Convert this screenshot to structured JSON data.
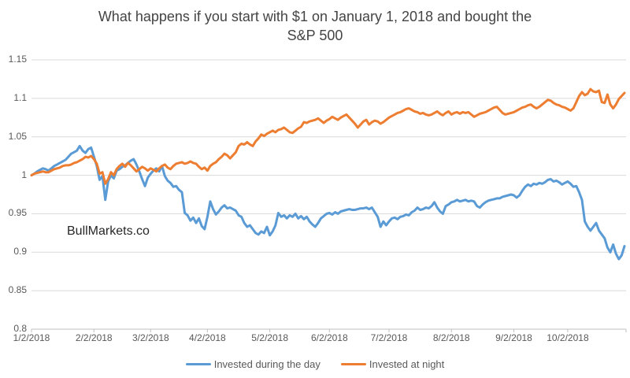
{
  "chart": {
    "title": "What happens if you start with $1 on January 1, 2018 and bought the S&P 500",
    "title_lines": [
      "What happens if you start with $1 on January 1, 2018 and bought the",
      "S&P 500"
    ],
    "watermark": "BullMarkets.co"
  },
  "chart_data": {
    "type": "line",
    "title": "What happens if you start with $1 on January 1, 2018 and bought the S&P 500",
    "xlabel": "",
    "ylabel": "",
    "ylim": [
      0.8,
      1.15
    ],
    "yticks": [
      0.8,
      0.85,
      0.9,
      0.95,
      1.0,
      1.05,
      1.1,
      1.15
    ],
    "ytick_labels": [
      "0.8",
      "0.85",
      "0.9",
      "0.95",
      "1",
      "1.05",
      "1.1",
      "1.15"
    ],
    "xtick_labels": [
      "1/2/2018",
      "2/2/2018",
      "3/2/2018",
      "4/2/2018",
      "5/2/2018",
      "6/2/2018",
      "7/2/2018",
      "8/2/2018",
      "9/2/2018",
      "10/2/2018"
    ],
    "xtick_positions": [
      0,
      22,
      42,
      62,
      84,
      105,
      126,
      148,
      170,
      189
    ],
    "x_count": 210,
    "x_range_note": "daily points, trading days 1/2/2018 through 10/31/2018",
    "grid": "horizontal",
    "legend_position": "bottom",
    "colors": {
      "grid": "#d9d9d9",
      "axis": "#bfbfbf",
      "tick": "#bfbfbf",
      "axis_text": "#595959",
      "title_text": "#444444",
      "watermark_text": "#262626",
      "series_day": "#5B9BD5",
      "series_night": "#ED7D31"
    },
    "series": [
      {
        "name": "Invested during the day",
        "color": "#5B9BD5",
        "values": [
          1.0,
          1.002,
          1.005,
          1.007,
          1.009,
          1.008,
          1.006,
          1.009,
          1.012,
          1.014,
          1.016,
          1.018,
          1.02,
          1.024,
          1.028,
          1.03,
          1.032,
          1.038,
          1.032,
          1.029,
          1.034,
          1.036,
          1.024,
          1.012,
          0.994,
          0.999,
          0.968,
          0.992,
          1.0,
          0.996,
          1.006,
          1.008,
          1.011,
          1.013,
          1.016,
          1.019,
          1.021,
          1.014,
          1.005,
          0.995,
          0.986,
          0.997,
          1.002,
          1.006,
          1.009,
          1.005,
          1.012,
          0.999,
          0.993,
          0.99,
          0.985,
          0.986,
          0.981,
          0.978,
          0.951,
          0.948,
          0.941,
          0.945,
          0.938,
          0.944,
          0.934,
          0.93,
          0.946,
          0.966,
          0.956,
          0.949,
          0.953,
          0.958,
          0.961,
          0.957,
          0.958,
          0.956,
          0.954,
          0.948,
          0.946,
          0.938,
          0.933,
          0.935,
          0.93,
          0.925,
          0.923,
          0.927,
          0.925,
          0.933,
          0.922,
          0.927,
          0.935,
          0.951,
          0.946,
          0.948,
          0.944,
          0.948,
          0.946,
          0.95,
          0.944,
          0.947,
          0.943,
          0.946,
          0.94,
          0.936,
          0.933,
          0.938,
          0.944,
          0.947,
          0.95,
          0.951,
          0.949,
          0.952,
          0.95,
          0.953,
          0.954,
          0.955,
          0.956,
          0.955,
          0.955,
          0.956,
          0.957,
          0.957,
          0.958,
          0.956,
          0.958,
          0.952,
          0.946,
          0.933,
          0.94,
          0.935,
          0.94,
          0.944,
          0.945,
          0.943,
          0.946,
          0.947,
          0.949,
          0.948,
          0.952,
          0.954,
          0.958,
          0.955,
          0.956,
          0.958,
          0.957,
          0.96,
          0.965,
          0.958,
          0.953,
          0.95,
          0.96,
          0.962,
          0.965,
          0.966,
          0.968,
          0.966,
          0.967,
          0.968,
          0.966,
          0.967,
          0.966,
          0.96,
          0.958,
          0.962,
          0.965,
          0.967,
          0.968,
          0.969,
          0.97,
          0.97,
          0.972,
          0.973,
          0.974,
          0.975,
          0.974,
          0.971,
          0.974,
          0.98,
          0.985,
          0.988,
          0.986,
          0.989,
          0.988,
          0.99,
          0.989,
          0.991,
          0.994,
          0.995,
          0.992,
          0.993,
          0.991,
          0.988,
          0.99,
          0.992,
          0.989,
          0.985,
          0.986,
          0.978,
          0.968,
          0.94,
          0.933,
          0.928,
          0.933,
          0.938,
          0.928,
          0.923,
          0.918,
          0.906,
          0.9,
          0.91,
          0.898,
          0.891,
          0.896,
          0.908
        ]
      },
      {
        "name": "Invested at night",
        "color": "#ED7D31",
        "values": [
          1.0,
          1.002,
          1.003,
          1.004,
          1.005,
          1.004,
          1.004,
          1.006,
          1.008,
          1.009,
          1.01,
          1.012,
          1.013,
          1.013,
          1.014,
          1.016,
          1.017,
          1.019,
          1.021,
          1.024,
          1.023,
          1.025,
          1.021,
          1.015,
          1.002,
          1.004,
          0.989,
          0.995,
          1.004,
          1.0,
          1.008,
          1.012,
          1.015,
          1.011,
          1.016,
          1.013,
          1.009,
          1.005,
          1.008,
          1.011,
          1.009,
          1.006,
          1.009,
          1.007,
          1.005,
          1.009,
          1.012,
          1.014,
          1.01,
          1.008,
          1.012,
          1.015,
          1.016,
          1.017,
          1.015,
          1.016,
          1.018,
          1.016,
          1.015,
          1.011,
          1.008,
          1.01,
          1.006,
          1.012,
          1.015,
          1.017,
          1.021,
          1.024,
          1.028,
          1.026,
          1.022,
          1.026,
          1.03,
          1.038,
          1.041,
          1.04,
          1.043,
          1.04,
          1.038,
          1.044,
          1.048,
          1.053,
          1.051,
          1.054,
          1.056,
          1.058,
          1.056,
          1.059,
          1.06,
          1.062,
          1.059,
          1.056,
          1.055,
          1.058,
          1.061,
          1.063,
          1.069,
          1.068,
          1.07,
          1.071,
          1.072,
          1.074,
          1.071,
          1.068,
          1.071,
          1.073,
          1.076,
          1.074,
          1.072,
          1.075,
          1.077,
          1.079,
          1.075,
          1.071,
          1.067,
          1.062,
          1.066,
          1.07,
          1.072,
          1.066,
          1.069,
          1.071,
          1.07,
          1.067,
          1.069,
          1.072,
          1.075,
          1.077,
          1.079,
          1.081,
          1.082,
          1.084,
          1.086,
          1.087,
          1.085,
          1.083,
          1.082,
          1.08,
          1.081,
          1.079,
          1.078,
          1.079,
          1.081,
          1.083,
          1.08,
          1.078,
          1.081,
          1.083,
          1.079,
          1.081,
          1.082,
          1.08,
          1.082,
          1.081,
          1.082,
          1.079,
          1.076,
          1.078,
          1.08,
          1.081,
          1.082,
          1.084,
          1.086,
          1.088,
          1.089,
          1.085,
          1.081,
          1.079,
          1.08,
          1.081,
          1.082,
          1.084,
          1.086,
          1.088,
          1.089,
          1.091,
          1.092,
          1.089,
          1.087,
          1.089,
          1.092,
          1.095,
          1.098,
          1.097,
          1.094,
          1.092,
          1.091,
          1.089,
          1.088,
          1.086,
          1.084,
          1.087,
          1.095,
          1.103,
          1.108,
          1.104,
          1.106,
          1.112,
          1.109,
          1.108,
          1.11,
          1.095,
          1.094,
          1.105,
          1.092,
          1.087,
          1.092,
          1.099,
          1.103,
          1.107
        ]
      }
    ]
  }
}
